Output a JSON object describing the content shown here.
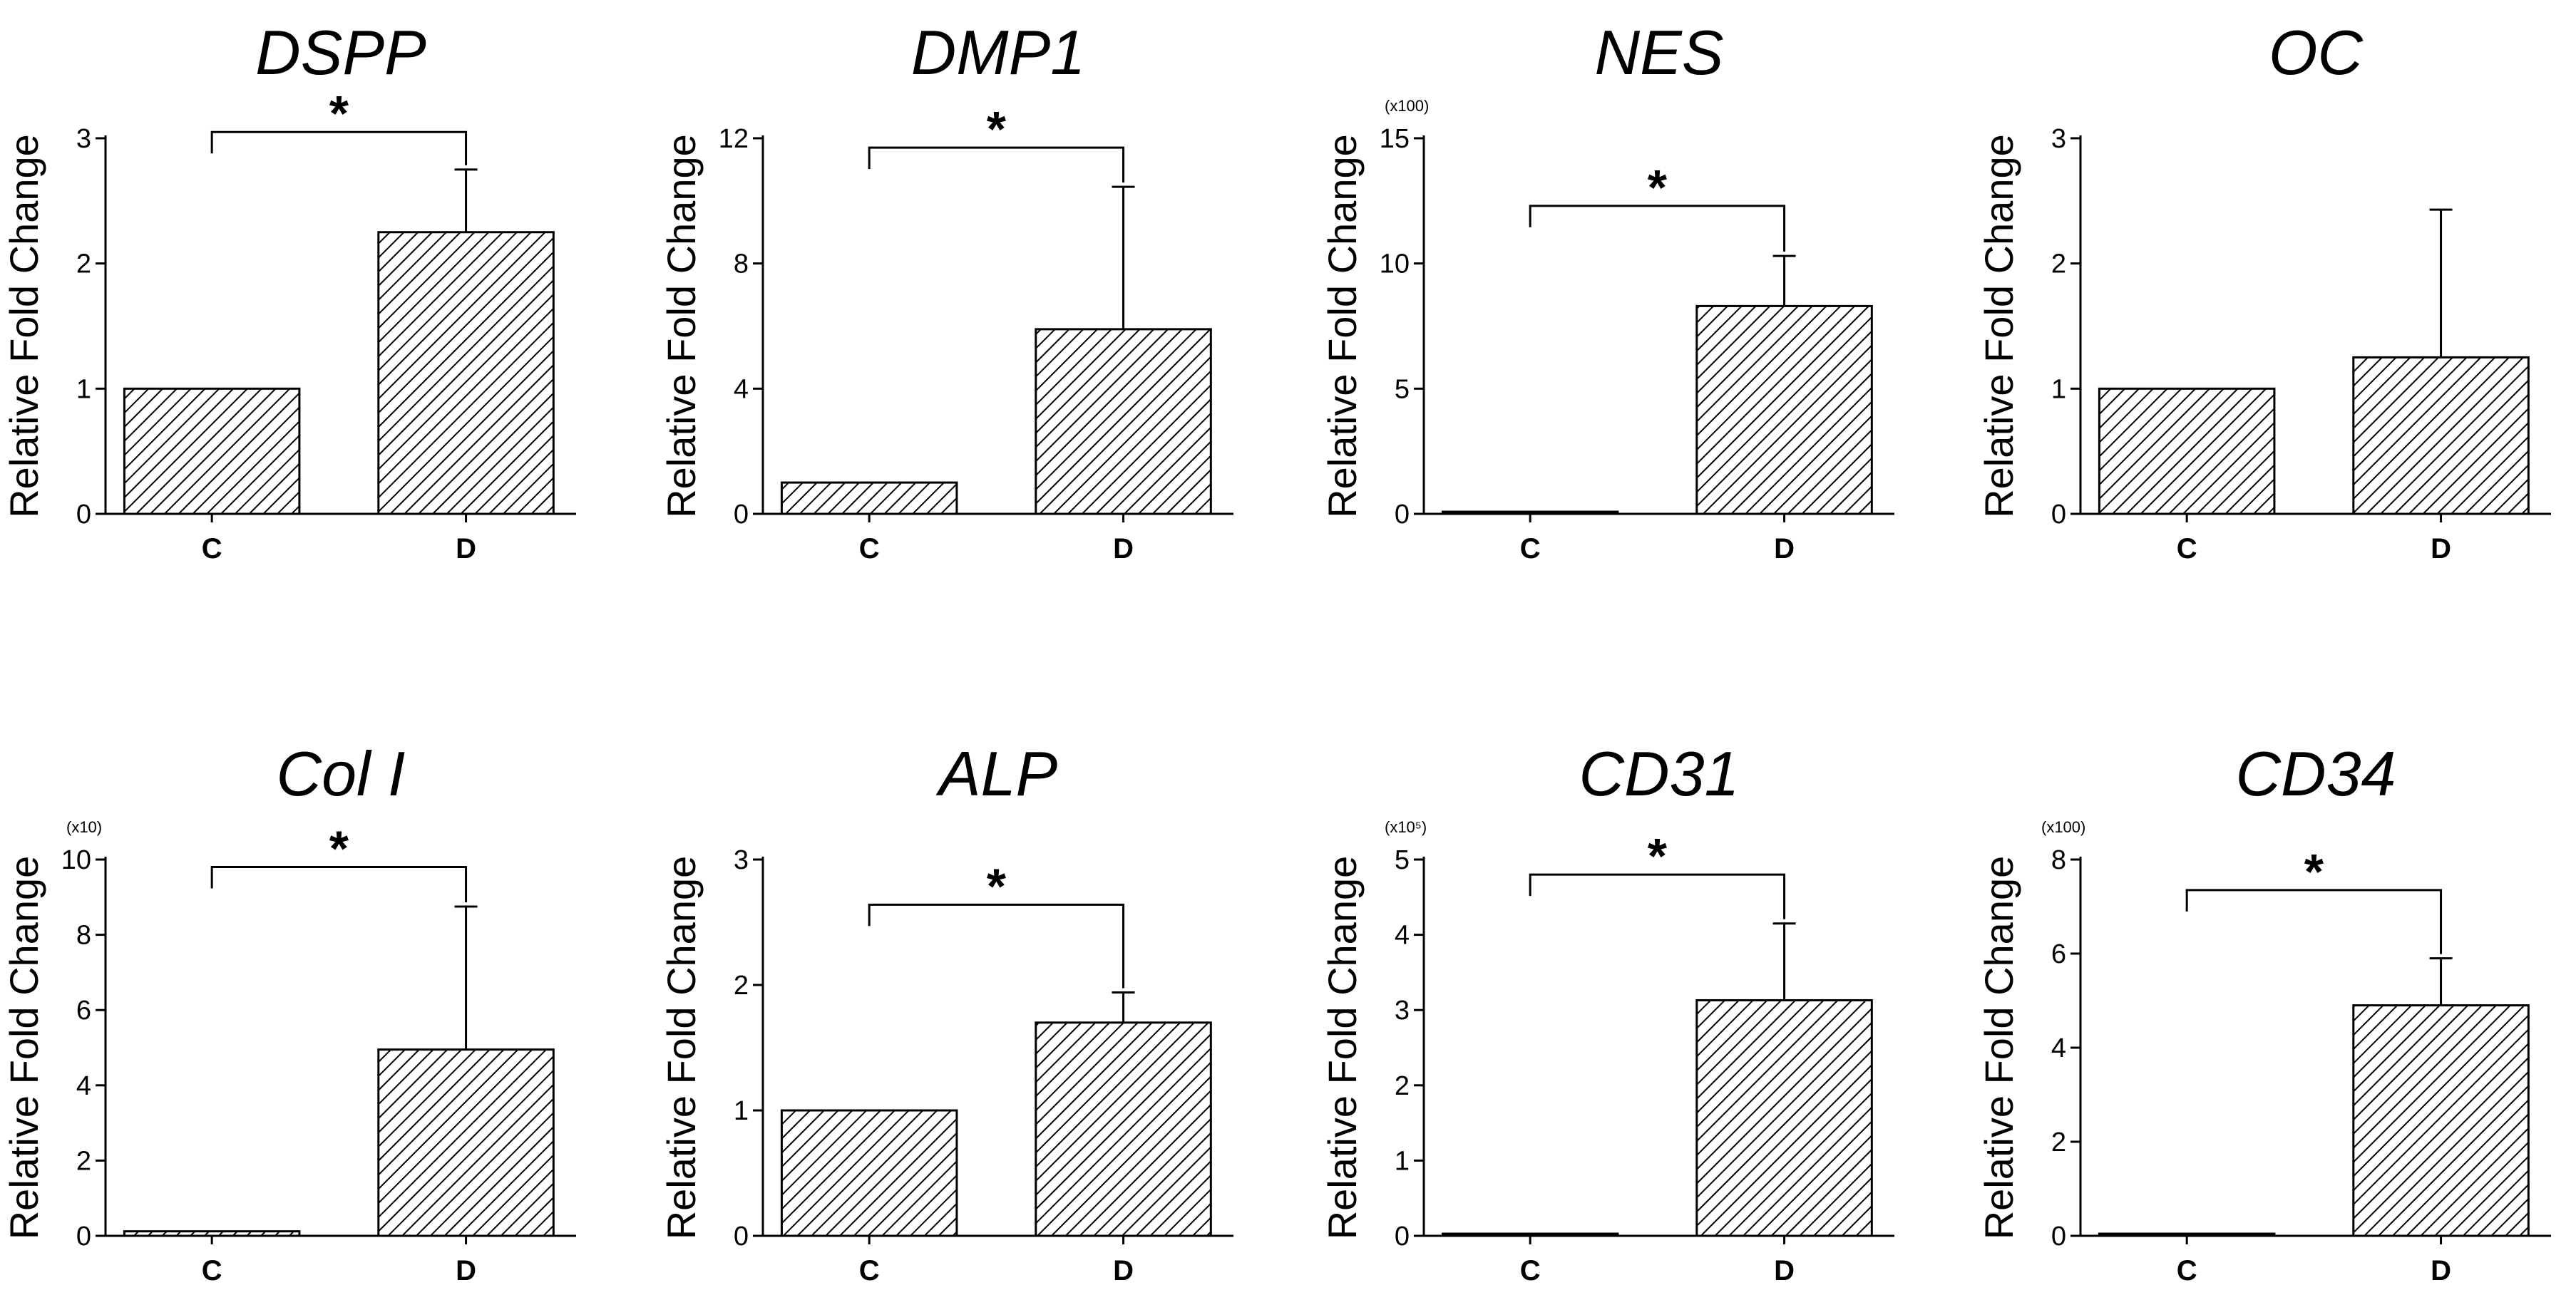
{
  "figure": {
    "ylabel": "Relative Fold Change"
  },
  "chart_data": [
    {
      "id": "dspp",
      "type": "bar",
      "title": "DSPP",
      "ylabel": "Relative Fold Change",
      "categories": [
        "C",
        "D"
      ],
      "values": [
        1,
        2.25
      ],
      "errors": [
        0,
        0.5
      ],
      "ylim": [
        0,
        3
      ],
      "yticks": [
        "0",
        "1",
        "2",
        "3"
      ],
      "multiplier": "",
      "significance": "*",
      "sig_level": 3.05
    },
    {
      "id": "dmp1",
      "type": "bar",
      "title": "DMP1",
      "ylabel": "Relative Fold Change",
      "categories": [
        "C",
        "D"
      ],
      "values": [
        1,
        5.9
      ],
      "errors": [
        0,
        4.55
      ],
      "ylim": [
        0,
        12
      ],
      "yticks": [
        "0",
        "4",
        "8",
        "12"
      ],
      "multiplier": "",
      "significance": "*",
      "sig_level": 11.7
    },
    {
      "id": "nes",
      "type": "bar",
      "title": "NES",
      "ylabel": "Relative Fold Change",
      "categories": [
        "C",
        "D"
      ],
      "values": [
        0.05,
        8.3
      ],
      "errors": [
        0,
        2.0
      ],
      "ylim": [
        0,
        15
      ],
      "yticks": [
        "0",
        "5",
        "10",
        "15"
      ],
      "multiplier": "(x100)",
      "significance": "*",
      "sig_level": 12.3
    },
    {
      "id": "oc",
      "type": "bar",
      "title": "OC",
      "ylabel": "Relative Fold Change",
      "categories": [
        "C",
        "D"
      ],
      "values": [
        1,
        1.25
      ],
      "errors": [
        0,
        1.18
      ],
      "ylim": [
        0,
        3
      ],
      "yticks": [
        "0",
        "1",
        "2",
        "3"
      ],
      "multiplier": "",
      "significance": "",
      "sig_level": null
    },
    {
      "id": "col1",
      "type": "bar",
      "title": "Col I",
      "ylabel": "Relative Fold Change",
      "categories": [
        "C",
        "D"
      ],
      "values": [
        0.12,
        4.95
      ],
      "errors": [
        0,
        3.8
      ],
      "ylim": [
        0,
        10
      ],
      "yticks": [
        "0",
        "2",
        "4",
        "6",
        "8",
        "10"
      ],
      "multiplier": "(x10)",
      "significance": "*",
      "sig_level": 9.8
    },
    {
      "id": "alp",
      "type": "bar",
      "title": "ALP",
      "ylabel": "Relative Fold Change",
      "categories": [
        "C",
        "D"
      ],
      "values": [
        1,
        1.7
      ],
      "errors": [
        0,
        0.24
      ],
      "ylim": [
        0,
        3
      ],
      "yticks": [
        "0",
        "1",
        "2",
        "3"
      ],
      "multiplier": "",
      "significance": "*",
      "sig_level": 2.64
    },
    {
      "id": "cd31",
      "type": "bar",
      "title": "CD31",
      "ylabel": "Relative Fold Change",
      "categories": [
        "C",
        "D"
      ],
      "values": [
        0.01,
        3.13
      ],
      "errors": [
        0,
        1.02
      ],
      "ylim": [
        0,
        5
      ],
      "yticks": [
        "0",
        "1",
        "2",
        "3",
        "4",
        "5"
      ],
      "multiplier": "(x10⁵)",
      "significance": "*",
      "sig_level": 4.8
    },
    {
      "id": "cd34",
      "type": "bar",
      "title": "CD34",
      "ylabel": "Relative Fold Change",
      "categories": [
        "C",
        "D"
      ],
      "values": [
        0.02,
        4.9
      ],
      "errors": [
        0,
        1.0
      ],
      "ylim": [
        0,
        8
      ],
      "yticks": [
        "0",
        "2",
        "4",
        "6",
        "8"
      ],
      "multiplier": "(x100)",
      "significance": "*",
      "sig_level": 7.35
    }
  ]
}
